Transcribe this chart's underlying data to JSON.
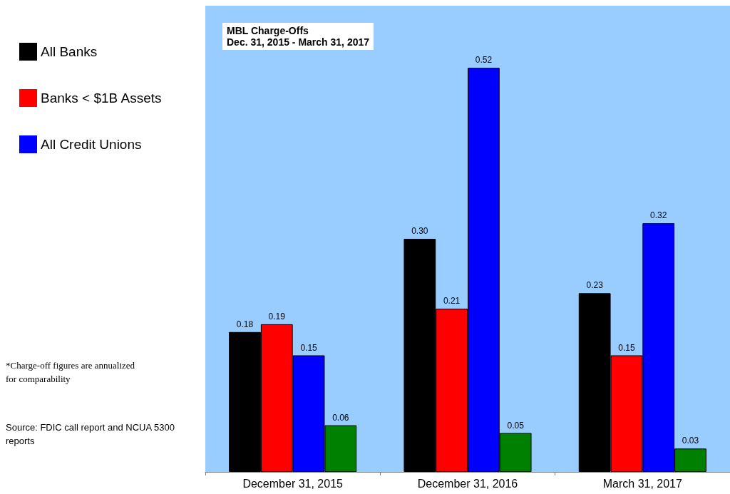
{
  "chart_data": {
    "type": "bar",
    "title": "MBL Charge-Offs",
    "subtitle": "Dec. 31, 2015 - March 31, 2017",
    "categories": [
      "December 31, 2015",
      "December 31, 2016",
      "March 31, 2017"
    ],
    "series": [
      {
        "name": "All Banks",
        "color": "#000000",
        "values": [
          0.18,
          0.3,
          0.23
        ],
        "value_labels": [
          "0.18",
          "0.30",
          "0.23"
        ]
      },
      {
        "name": "Banks < $1B Assets",
        "color": "#ff0000",
        "values": [
          0.19,
          0.21,
          0.15
        ],
        "value_labels": [
          "0.19",
          "0.21",
          "0.15"
        ]
      },
      {
        "name": "All Credit Unions",
        "color": "#0000ff",
        "values": [
          0.15,
          0.52,
          0.32
        ],
        "value_labels": [
          "0.15",
          "0.52",
          "0.32"
        ]
      },
      {
        "color": "#008000",
        "values": [
          0.06,
          0.05,
          0.03
        ],
        "value_labels": [
          "0.06",
          "0.05",
          "0.03"
        ]
      }
    ],
    "annotations": [
      "*Charge-off figures are annualized for comparability",
      "Source: FDIC call report and NCUA 5300 reports"
    ],
    "legend": "left"
  }
}
